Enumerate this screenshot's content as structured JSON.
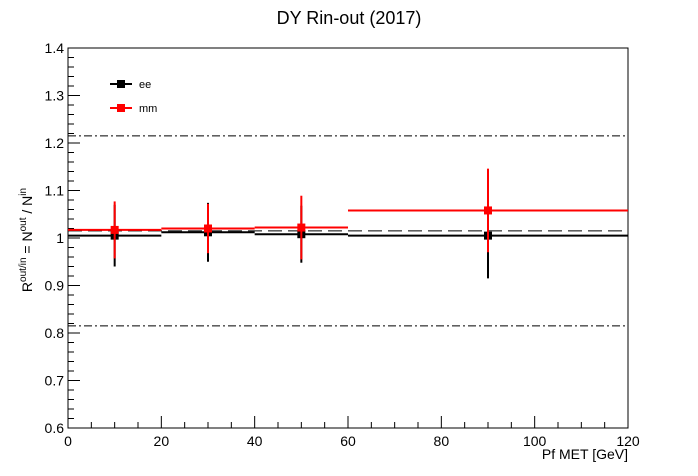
{
  "chart_data": {
    "type": "scatter",
    "title": "DY Rin-out (2017)",
    "xlabel": "Pf MET [GeV]",
    "ylabel_parts": [
      "R",
      "out/in",
      " = N",
      "out",
      " / N",
      "in"
    ],
    "xlim": [
      0,
      120
    ],
    "ylim": [
      0.6,
      1.4
    ],
    "xticks": [
      "0",
      "20",
      "40",
      "60",
      "80",
      "100",
      "120"
    ],
    "yticks": [
      "0.6",
      "0.7",
      "0.8",
      "0.9",
      "1",
      "1.1",
      "1.2",
      "1.3",
      "1.4"
    ],
    "reference_lines": [
      {
        "style": "dashed",
        "y": 1.015
      },
      {
        "style": "dash-dot",
        "y": 1.215
      },
      {
        "style": "dash-dot",
        "y": 0.815
      }
    ],
    "legend_position": "top-left",
    "series": [
      {
        "name": "ee",
        "color": "#000000",
        "points": [
          {
            "x": 10,
            "y": 1.005,
            "xerr": 10,
            "yerr_low": 0.065,
            "yerr_high": 0.065
          },
          {
            "x": 30,
            "y": 1.012,
            "xerr": 10,
            "yerr_low": 0.062,
            "yerr_high": 0.062
          },
          {
            "x": 50,
            "y": 1.008,
            "xerr": 10,
            "yerr_low": 0.06,
            "yerr_high": 0.06
          },
          {
            "x": 90,
            "y": 1.005,
            "xerr": 30,
            "yerr_low": 0.09,
            "yerr_high": 0.09
          }
        ]
      },
      {
        "name": "mm",
        "color": "#ff0000",
        "points": [
          {
            "x": 10,
            "y": 1.017,
            "xerr": 10,
            "yerr_low": 0.06,
            "yerr_high": 0.06
          },
          {
            "x": 30,
            "y": 1.02,
            "xerr": 10,
            "yerr_low": 0.052,
            "yerr_high": 0.052
          },
          {
            "x": 50,
            "y": 1.022,
            "xerr": 10,
            "yerr_low": 0.067,
            "yerr_high": 0.067
          },
          {
            "x": 90,
            "y": 1.058,
            "xerr": 30,
            "yerr_low": 0.088,
            "yerr_high": 0.088
          }
        ]
      }
    ]
  }
}
